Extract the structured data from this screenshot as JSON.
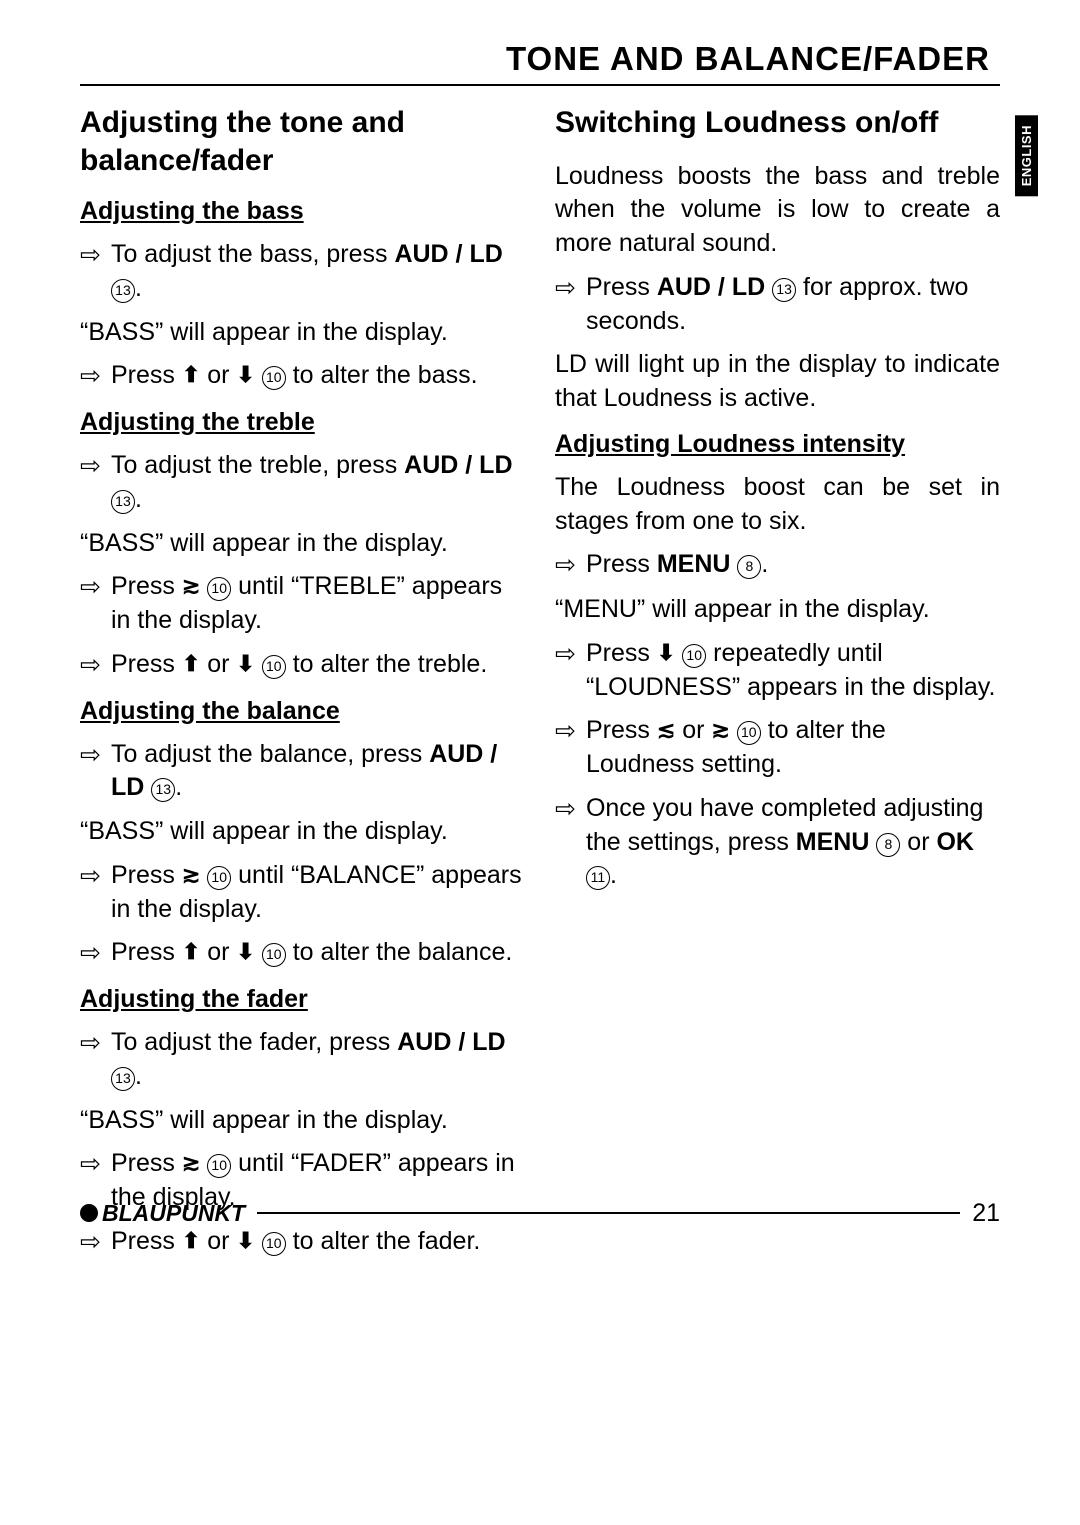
{
  "header": "TONE AND BALANCE/FADER",
  "side_tab": "ENGLISH",
  "left": {
    "section_heading": "Adjusting the tone and balance/fader",
    "bass": {
      "heading": "Adjusting the bass",
      "b1_pre": "To adjust the bass, press ",
      "b1_bold": "AUD / LD",
      "b1_circ": "13",
      "b1_post": ".",
      "p1": "“BASS” will appear in the display.",
      "b2_pre": "Press ",
      "b2_sym1": "⬆",
      "b2_mid": " or ",
      "b2_sym2": "⬇",
      "b2_circ": "10",
      "b2_post": " to alter the bass."
    },
    "treble": {
      "heading": "Adjusting the treble",
      "b1_pre": "To adjust the treble, press ",
      "b1_bold": "AUD / LD",
      "b1_circ": "13",
      "b1_post": ".",
      "p1": "“BASS” will appear in the display.",
      "b2_pre": "Press ",
      "b2_sym": "≳",
      "b2_circ": "10",
      "b2_post": " until “TREBLE” appears in the display.",
      "b3_pre": "Press ",
      "b3_sym1": "⬆",
      "b3_mid": " or ",
      "b3_sym2": "⬇",
      "b3_circ": "10",
      "b3_post": " to alter the treble."
    },
    "balance": {
      "heading": "Adjusting the balance",
      "b1_pre": "To adjust the balance, press ",
      "b1_bold": "AUD / LD",
      "b1_circ": "13",
      "b1_post": ".",
      "p1": "“BASS” will appear in the display.",
      "b2_pre": "Press ",
      "b2_sym": "≳",
      "b2_circ": "10",
      "b2_post": " until “BALANCE” appears in the display.",
      "b3_pre": "Press ",
      "b3_sym1": "⬆",
      "b3_mid": " or ",
      "b3_sym2": "⬇",
      "b3_circ": "10",
      "b3_post": " to alter the balance."
    },
    "fader": {
      "heading": "Adjusting the fader",
      "b1_pre": "To adjust the fader, press ",
      "b1_bold": "AUD / LD",
      "b1_circ": "13",
      "b1_post": ".",
      "p1": "“BASS” will appear in the display.",
      "b2_pre": "Press ",
      "b2_sym": "≳",
      "b2_circ": "10",
      "b2_post": " until “FADER” appears in the display.",
      "b3_pre": "Press ",
      "b3_sym1": "⬆",
      "b3_mid": " or ",
      "b3_sym2": "⬇",
      "b3_circ": "10",
      "b3_post": " to alter the fader."
    }
  },
  "right": {
    "section_heading": "Switching Loudness on/off",
    "p1": "Loudness boosts the bass and treble when the volume is low to create a more natural sound.",
    "b1_pre": "Press ",
    "b1_bold": "AUD / LD",
    "b1_circ": "13",
    "b1_post": " for approx. two seconds.",
    "p2": "LD will light up in the display to indicate that Loudness is active.",
    "intensity": {
      "heading": "Adjusting Loudness intensity",
      "p1": "The Loudness boost can be set in stages from one to six.",
      "b1_pre": "Press ",
      "b1_bold": "MENU",
      "b1_circ": "8",
      "b1_post": ".",
      "p2": "“MENU” will appear in the display.",
      "b2_pre": "Press ",
      "b2_sym": "⬇",
      "b2_circ": "10",
      "b2_post": " repeatedly until “LOUDNESS” appears in the display.",
      "b3_pre": "Press ",
      "b3_sym1": "≲",
      "b3_mid": " or ",
      "b3_sym2": "≳",
      "b3_circ": "10",
      "b3_post": " to alter the Loudness setting.",
      "b4_pre": "Once you have completed adjusting the settings, press ",
      "b4_bold1": "MENU",
      "b4_circ1": "8",
      "b4_mid": " or ",
      "b4_bold2": "OK",
      "b4_circ2": "11",
      "b4_post": "."
    }
  },
  "footer": {
    "brand": "BLAUPUNKT",
    "page": "21"
  },
  "arrow_glyph": "⇨"
}
